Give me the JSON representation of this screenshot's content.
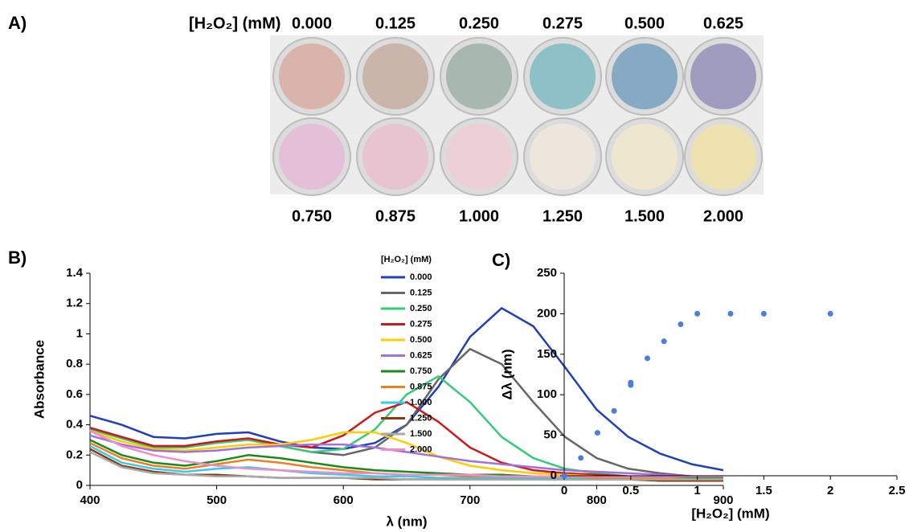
{
  "panel_a": {
    "label": "A)",
    "axis_label": "[H₂O₂] (mM)",
    "top": [
      "0.000",
      "0.125",
      "0.250",
      "0.275",
      "0.500",
      "0.625"
    ],
    "bottom": [
      "0.750",
      "0.875",
      "1.000",
      "1.250",
      "1.500",
      "2.000"
    ]
  },
  "chart_data": [
    {
      "type": "line",
      "panel_label": "B)",
      "xlabel": "λ (nm)",
      "ylabel": "Absorbance",
      "legend_title": "[H₂O₂] (mM)",
      "xlim": [
        400,
        900
      ],
      "xticks": [
        400,
        500,
        600,
        700,
        800,
        900
      ],
      "ylim": [
        0,
        1.4
      ],
      "yticks": [
        0,
        0.2,
        0.4,
        0.6,
        0.8,
        1,
        1.2,
        1.4
      ],
      "x": [
        400,
        425,
        450,
        475,
        500,
        525,
        550,
        575,
        600,
        625,
        650,
        675,
        700,
        725,
        750,
        775,
        800,
        825,
        850,
        875,
        900
      ],
      "series": [
        {
          "name": "0.000",
          "color": "#1f3fbf",
          "values": [
            0.46,
            0.4,
            0.32,
            0.31,
            0.34,
            0.35,
            0.29,
            0.25,
            0.24,
            0.28,
            0.4,
            0.65,
            0.98,
            1.17,
            1.05,
            0.78,
            0.5,
            0.32,
            0.21,
            0.14,
            0.1
          ]
        },
        {
          "name": "0.125",
          "color": "#666666",
          "values": [
            0.38,
            0.32,
            0.26,
            0.26,
            0.29,
            0.3,
            0.26,
            0.22,
            0.2,
            0.25,
            0.4,
            0.7,
            0.9,
            0.8,
            0.55,
            0.32,
            0.18,
            0.11,
            0.08,
            0.06,
            0.05
          ]
        },
        {
          "name": "0.250",
          "color": "#33cc77",
          "values": [
            0.37,
            0.31,
            0.25,
            0.25,
            0.28,
            0.3,
            0.26,
            0.22,
            0.24,
            0.37,
            0.6,
            0.72,
            0.55,
            0.32,
            0.18,
            0.11,
            0.08,
            0.06,
            0.05,
            0.05,
            0.04
          ]
        },
        {
          "name": "0.275",
          "color": "#d0181c",
          "values": [
            0.38,
            0.32,
            0.26,
            0.26,
            0.29,
            0.31,
            0.27,
            0.25,
            0.33,
            0.48,
            0.55,
            0.42,
            0.25,
            0.15,
            0.1,
            0.08,
            0.07,
            0.06,
            0.05,
            0.05,
            0.04
          ]
        },
        {
          "name": "0.500",
          "color": "#ffcc00",
          "values": [
            0.36,
            0.29,
            0.24,
            0.23,
            0.25,
            0.27,
            0.27,
            0.3,
            0.35,
            0.35,
            0.28,
            0.19,
            0.13,
            0.1,
            0.08,
            0.07,
            0.06,
            0.05,
            0.05,
            0.04,
            0.04
          ]
        },
        {
          "name": "0.625",
          "color": "#a070e0",
          "values": [
            0.33,
            0.27,
            0.23,
            0.22,
            0.23,
            0.25,
            0.26,
            0.27,
            0.27,
            0.25,
            0.22,
            0.19,
            0.16,
            0.14,
            0.12,
            0.1,
            0.09,
            0.08,
            0.07,
            0.06,
            0.06
          ]
        },
        {
          "name": "0.750",
          "color": "#1a8a1a",
          "values": [
            0.3,
            0.2,
            0.15,
            0.13,
            0.16,
            0.2,
            0.18,
            0.15,
            0.12,
            0.1,
            0.09,
            0.08,
            0.07,
            0.07,
            0.06,
            0.06,
            0.06,
            0.05,
            0.05,
            0.05,
            0.05
          ]
        },
        {
          "name": "0.875",
          "color": "#f07f20",
          "values": [
            0.28,
            0.18,
            0.13,
            0.11,
            0.14,
            0.17,
            0.15,
            0.12,
            0.1,
            0.08,
            0.07,
            0.07,
            0.06,
            0.06,
            0.05,
            0.05,
            0.05,
            0.05,
            0.05,
            0.04,
            0.04
          ]
        },
        {
          "name": "1.000",
          "color": "#33ccee",
          "values": [
            0.26,
            0.15,
            0.11,
            0.09,
            0.11,
            0.12,
            0.1,
            0.08,
            0.07,
            0.06,
            0.06,
            0.05,
            0.05,
            0.05,
            0.05,
            0.05,
            0.04,
            0.04,
            0.04,
            0.04,
            0.04
          ]
        },
        {
          "name": "1.250",
          "color": "#8b3a0e",
          "values": [
            0.24,
            0.13,
            0.09,
            0.07,
            0.07,
            0.06,
            0.05,
            0.05,
            0.05,
            0.04,
            0.04,
            0.04,
            0.04,
            0.04,
            0.04,
            0.04,
            0.04,
            0.04,
            0.03,
            0.03,
            0.03
          ]
        },
        {
          "name": "1.500",
          "color": "#aaaaaa",
          "values": [
            0.22,
            0.12,
            0.08,
            0.07,
            0.06,
            0.06,
            0.05,
            0.05,
            0.05,
            0.05,
            0.04,
            0.04,
            0.04,
            0.04,
            0.04,
            0.04,
            0.04,
            0.04,
            0.04,
            0.04,
            0.04
          ]
        },
        {
          "name": "2.000",
          "color": "#f08cc8",
          "values": [
            0.36,
            0.26,
            0.2,
            0.16,
            0.13,
            0.11,
            0.1,
            0.09,
            0.08,
            0.08,
            0.07,
            0.07,
            0.07,
            0.06,
            0.06,
            0.06,
            0.06,
            0.06,
            0.06,
            0.06,
            0.06
          ]
        }
      ]
    },
    {
      "type": "scatter",
      "panel_label": "C)",
      "xlabel": "[H₂O₂] (mM)",
      "ylabel": "Δλ (nm)",
      "color": "#4a7ee0",
      "xlim": [
        0,
        2.5
      ],
      "xticks": [
        0,
        0.5,
        1,
        1.5,
        2,
        2.5
      ],
      "ylim": [
        0,
        250
      ],
      "yticks": [
        0,
        50,
        100,
        150,
        200,
        250
      ],
      "x": [
        0,
        0.125,
        0.25,
        0.375,
        0.5,
        0.5,
        0.625,
        0.75,
        0.875,
        1,
        1.25,
        1.5,
        2
      ],
      "values": [
        0,
        22,
        53,
        80,
        112,
        115,
        145,
        166,
        187,
        200,
        200,
        200,
        200
      ]
    }
  ]
}
